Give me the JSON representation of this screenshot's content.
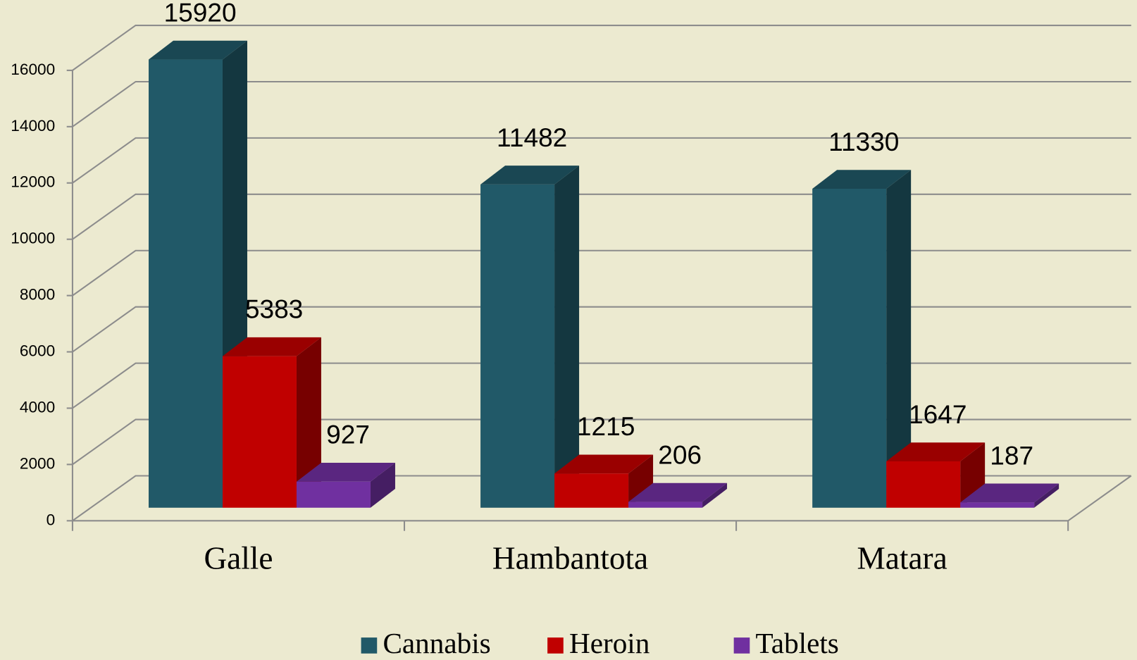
{
  "chart_data": {
    "type": "bar3d",
    "categories": [
      "Galle",
      "Hambantota",
      "Matara"
    ],
    "series": [
      {
        "name": "Cannabis",
        "color": "#215968",
        "values": [
          15920,
          11482,
          11330
        ]
      },
      {
        "name": "Heroin",
        "color": "#c00000",
        "values": [
          5383,
          1215,
          1647
        ]
      },
      {
        "name": "Tablets",
        "color": "#7030a0",
        "values": [
          927,
          206,
          187
        ]
      }
    ],
    "ylim": [
      0,
      16000
    ],
    "yticks": [
      0,
      2000,
      4000,
      6000,
      8000,
      10000,
      12000,
      14000,
      16000
    ],
    "grid": true,
    "legend": "bottom"
  }
}
